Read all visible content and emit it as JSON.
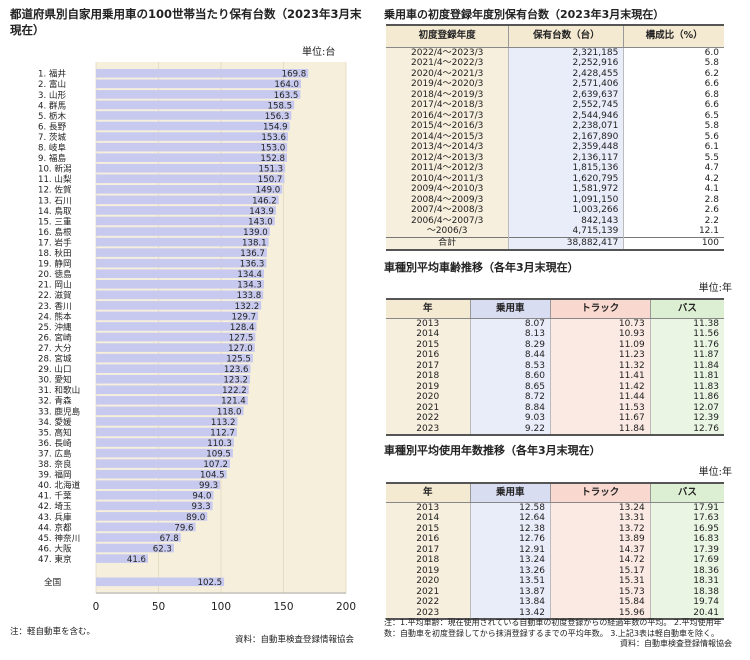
{
  "left": {
    "title": "都道府県別自家用乗用車の100世帯当たり保有台数（2023年3月末現在）",
    "unit": "単位:台",
    "note": "注：軽自動車を含む。",
    "source": "資料：自動車検査登録情報協会"
  },
  "chart_data": {
    "type": "bar",
    "orientation": "horizontal",
    "title": "都道府県別自家用乗用車の100世帯当たり保有台数（2023年3月末現在）",
    "unit": "単位:台",
    "xlim": [
      0,
      200
    ],
    "xticks": [
      0,
      50,
      100,
      150,
      200
    ],
    "bar_color": "#c7c9ee",
    "panel_color": "#f6efdc",
    "categories": [
      "1. 福井",
      "2. 富山",
      "3. 山形",
      "4. 群馬",
      "5. 栃木",
      "6. 長野",
      "7. 茨城",
      "8. 岐阜",
      "9. 福島",
      "10. 新潟",
      "11. 山梨",
      "12. 佐賀",
      "13. 石川",
      "14. 鳥取",
      "15. 三重",
      "16. 島根",
      "17. 岩手",
      "18. 秋田",
      "19. 静岡",
      "20. 徳島",
      "21. 岡山",
      "22. 滋賀",
      "23. 香川",
      "24. 熊本",
      "25. 沖縄",
      "26. 宮崎",
      "27. 大分",
      "28. 宮城",
      "29. 山口",
      "30. 愛知",
      "31. 和歌山",
      "32. 青森",
      "33. 鹿児島",
      "34. 愛媛",
      "35. 高知",
      "36. 長崎",
      "37. 広島",
      "38. 奈良",
      "39. 福岡",
      "40. 北海道",
      "41. 千葉",
      "42. 埼玉",
      "43. 兵庫",
      "44. 京都",
      "45. 神奈川",
      "46. 大阪",
      "47. 東京"
    ],
    "values": [
      169.8,
      164.0,
      163.5,
      158.5,
      156.3,
      154.9,
      153.6,
      153.0,
      152.8,
      151.3,
      150.7,
      149.0,
      146.2,
      143.9,
      143.0,
      139.0,
      138.1,
      136.7,
      136.3,
      134.4,
      134.3,
      133.8,
      132.2,
      129.7,
      128.4,
      127.5,
      127.0,
      125.5,
      123.6,
      123.2,
      122.2,
      121.4,
      118.0,
      113.2,
      112.7,
      110.3,
      109.5,
      107.2,
      104.5,
      99.3,
      94.0,
      93.3,
      89.0,
      79.6,
      67.8,
      62.3,
      41.6
    ],
    "value_labels": [
      "169.8",
      "164.0",
      "163.5",
      "158.5",
      "156.3",
      "154.9",
      "153.6",
      "153.0",
      "152.8",
      "151.3",
      "150.7",
      "149.0",
      "146.2",
      "143.9",
      "143.0",
      "139.0",
      "138.1",
      "136.7",
      "136.3",
      "134.4",
      "134.3",
      "133.8",
      "132.2",
      "129.7",
      "128.4",
      "127.5",
      "127.0",
      "125.5",
      "123.6",
      "123.2",
      "122.2",
      "121.4",
      "118.0",
      "113.2",
      "112.7",
      "110.3",
      "109.5",
      "107.2",
      "104.5",
      "99.3",
      "94.0",
      "93.3",
      "89.0",
      "79.6",
      "67.8",
      "62.3",
      "41.6"
    ],
    "total": {
      "label": "全国",
      "value": 102.5,
      "value_label": "102.5"
    }
  },
  "table1": {
    "title": "乗用車の初度登録年度別保有台数（2023年3月末現在）",
    "headers": [
      "初度登録年度",
      "保有台数（台）",
      "構成比（%）"
    ],
    "rows": [
      [
        "2022/4～2023/3",
        "2,321,185",
        "6.0"
      ],
      [
        "2021/4～2022/3",
        "2,252,916",
        "5.8"
      ],
      [
        "2020/4～2021/3",
        "2,428,455",
        "6.2"
      ],
      [
        "2019/4～2020/3",
        "2,571,406",
        "6.6"
      ],
      [
        "2018/4～2019/3",
        "2,639,637",
        "6.8"
      ],
      [
        "2017/4～2018/3",
        "2,552,745",
        "6.6"
      ],
      [
        "2016/4～2017/3",
        "2,544,946",
        "6.5"
      ],
      [
        "2015/4～2016/3",
        "2,238,071",
        "5.8"
      ],
      [
        "2014/4～2015/3",
        "2,167,890",
        "5.6"
      ],
      [
        "2013/4～2014/3",
        "2,359,448",
        "6.1"
      ],
      [
        "2012/4～2013/3",
        "2,136,117",
        "5.5"
      ],
      [
        "2011/4～2012/3",
        "1,815,136",
        "4.7"
      ],
      [
        "2010/4～2011/3",
        "1,620,795",
        "4.2"
      ],
      [
        "2009/4～2010/3",
        "1,581,972",
        "4.1"
      ],
      [
        "2008/4～2009/3",
        "1,091,150",
        "2.8"
      ],
      [
        "2007/4～2008/3",
        "1,003,266",
        "2.6"
      ],
      [
        "2006/4～2007/3",
        "842,143",
        "2.2"
      ],
      [
        "～2006/3",
        "4,715,139",
        "12.1"
      ]
    ],
    "total": [
      "合計",
      "38,882,417",
      "100"
    ]
  },
  "table2": {
    "title": "車種別平均車齢推移（各年3月末現在）",
    "unit": "単位:年",
    "headers": [
      "年",
      "乗用車",
      "トラック",
      "バス"
    ],
    "rows": [
      [
        "2013",
        "8.07",
        "10.73",
        "11.38"
      ],
      [
        "2014",
        "8.13",
        "10.93",
        "11.56"
      ],
      [
        "2015",
        "8.29",
        "11.09",
        "11.76"
      ],
      [
        "2016",
        "8.44",
        "11.23",
        "11.87"
      ],
      [
        "2017",
        "8.53",
        "11.32",
        "11.84"
      ],
      [
        "2018",
        "8.60",
        "11.41",
        "11.81"
      ],
      [
        "2019",
        "8.65",
        "11.42",
        "11.83"
      ],
      [
        "2020",
        "8.72",
        "11.44",
        "11.86"
      ],
      [
        "2021",
        "8.84",
        "11.53",
        "12.07"
      ],
      [
        "2022",
        "9.03",
        "11.67",
        "12.39"
      ],
      [
        "2023",
        "9.22",
        "11.84",
        "12.76"
      ]
    ]
  },
  "table3": {
    "title": "車種別平均使用年数推移（各年3月末現在）",
    "unit": "単位:年",
    "headers": [
      "年",
      "乗用車",
      "トラック",
      "バス"
    ],
    "rows": [
      [
        "2013",
        "12.58",
        "13.24",
        "17.91"
      ],
      [
        "2014",
        "12.64",
        "13.31",
        "17.63"
      ],
      [
        "2015",
        "12.38",
        "13.72",
        "16.95"
      ],
      [
        "2016",
        "12.76",
        "13.89",
        "16.83"
      ],
      [
        "2017",
        "12.91",
        "14.37",
        "17.39"
      ],
      [
        "2018",
        "13.24",
        "14.72",
        "17.69"
      ],
      [
        "2019",
        "13.26",
        "15.17",
        "18.36"
      ],
      [
        "2020",
        "13.51",
        "15.31",
        "18.31"
      ],
      [
        "2021",
        "13.87",
        "15.73",
        "18.38"
      ],
      [
        "2022",
        "13.84",
        "15.84",
        "19.74"
      ],
      [
        "2023",
        "13.42",
        "15.96",
        "20.41"
      ]
    ]
  },
  "right_note": "注：1.平均車齢：現在使用されている自動車の初度登録からの経過年数の平均。 2.平均使用年数：自動車を初度登録してから抹消登録するまでの平均年数。 3.上記3表は軽自動車を除く。",
  "right_source": "資料：自動車検査登録情報協会"
}
